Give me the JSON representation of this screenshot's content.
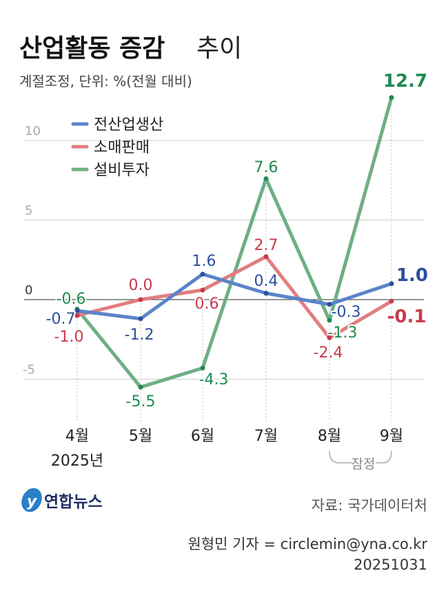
{
  "chart_data": {
    "type": "line",
    "title_bold": "산업활동 증감",
    "title_light": "추이",
    "subtitle": "계절조정, 단위: %(전월 대비)",
    "categories": [
      "4월",
      "5월",
      "6월",
      "7월",
      "8월",
      "9월"
    ],
    "year_label": "2025년",
    "provisional_label": "잠정",
    "y_ticks": [
      "10",
      "5",
      "0",
      "-5"
    ],
    "ylim": [
      -7,
      14
    ],
    "series": [
      {
        "name": "전산업생산",
        "color": "#5b84c9",
        "label_color": "#2b4f9e",
        "values": [
          -0.7,
          -1.2,
          1.6,
          0.4,
          -0.3,
          1.0
        ],
        "labels": [
          "-0.7",
          "-1.2",
          "1.6",
          "0.4",
          "-0.3",
          "1.0"
        ]
      },
      {
        "name": "소매판매",
        "color": "#e27d80",
        "label_color": "#c73a4d",
        "values": [
          -1.0,
          0.0,
          0.6,
          2.7,
          -2.4,
          -0.1
        ],
        "labels": [
          "-1.0",
          "0.0",
          "0.6",
          "2.7",
          "-2.4",
          "-0.1"
        ]
      },
      {
        "name": "설비투자",
        "color": "#6fae86",
        "label_color": "#1f8a50",
        "values": [
          -0.6,
          -5.5,
          -4.3,
          7.6,
          -1.3,
          12.7
        ],
        "labels": [
          "-0.6",
          "-5.5",
          "-4.3",
          "7.6",
          "-1.3",
          "12.7"
        ]
      }
    ]
  },
  "footer": {
    "logo": "연합뉴스",
    "source": "자료: 국가데이터처",
    "reporter": "원형민 기자 = circlemin@yna.co.kr",
    "date": "20251031"
  }
}
